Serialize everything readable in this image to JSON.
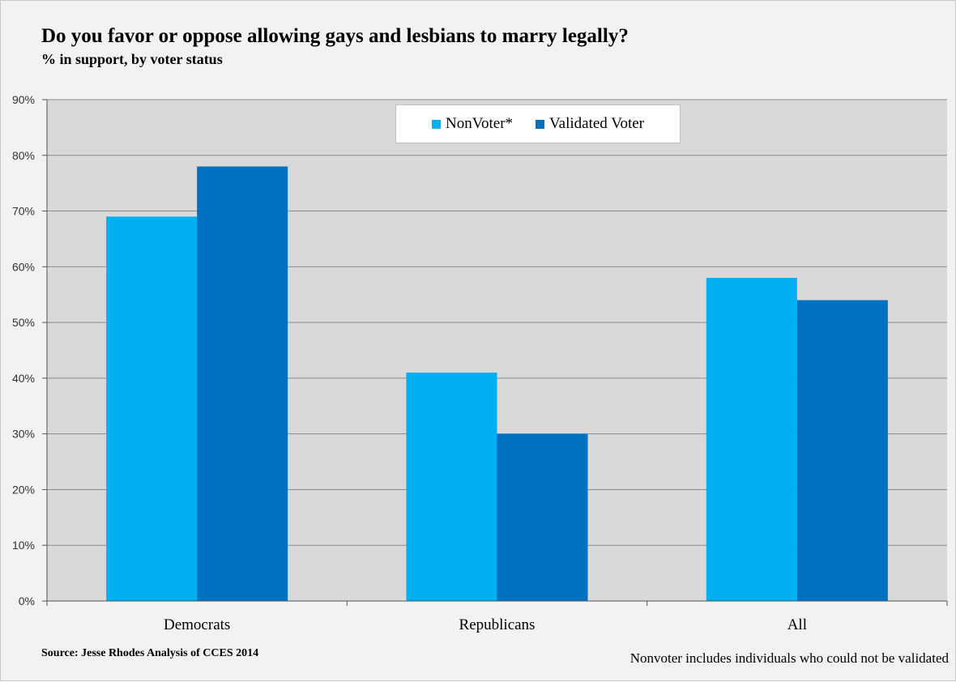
{
  "chart_data": {
    "type": "bar",
    "title": "Do you favor or oppose allowing gays and lesbians to marry legally?",
    "subtitle": "% in support, by voter status",
    "categories": [
      "Democrats",
      "Republicans",
      "All"
    ],
    "series": [
      {
        "name": "NonVoter*",
        "values": [
          69,
          41,
          58
        ],
        "color": "#00b0f0"
      },
      {
        "name": "Validated Voter",
        "values": [
          78,
          30,
          54
        ],
        "color": "#0070c0"
      }
    ],
    "ylim": [
      0,
      90
    ],
    "yticks": [
      "0%",
      "10%",
      "20%",
      "30%",
      "40%",
      "50%",
      "60%",
      "70%",
      "80%",
      "90%"
    ],
    "y_tick_values": [
      0,
      10,
      20,
      30,
      40,
      50,
      60,
      70,
      80,
      90
    ],
    "grid": true,
    "legend_position": "top-center",
    "source": "Source: Jesse Rhodes Analysis of CCES 2014",
    "footnote": "Nonvoter includes individuals who could not be validated"
  },
  "colors": {
    "plot_background": "#d9d9d9",
    "gridline": "#8c8c8c",
    "frame_background": "#f2f2f2"
  }
}
